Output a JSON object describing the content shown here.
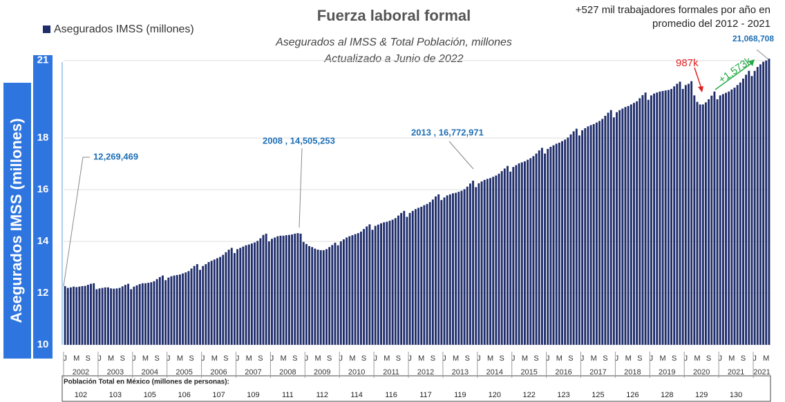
{
  "chart_data": {
    "type": "bar",
    "title": "Fuerza laboral formal",
    "subtitle": [
      "Asegurados al IMSS & Total Población, millones",
      "Actualizado a Junio de 2022"
    ],
    "note": [
      "+527 mil trabajadores formales por año en",
      "promedio del 2012 - 2021"
    ],
    "ylabel": "Asegurados IMSS (millones)",
    "series": [
      {
        "name": "Asegurados IMSS (millones)",
        "color": "#1f2d6b",
        "values": [
          12.27,
          12.2,
          12.22,
          12.25,
          12.23,
          12.25,
          12.27,
          12.28,
          12.32,
          12.36,
          12.38,
          12.15,
          12.18,
          12.2,
          12.22,
          12.22,
          12.18,
          12.17,
          12.18,
          12.2,
          12.26,
          12.32,
          12.36,
          12.15,
          12.25,
          12.3,
          12.35,
          12.38,
          12.38,
          12.4,
          12.42,
          12.46,
          12.54,
          12.62,
          12.68,
          12.5,
          12.6,
          12.65,
          12.68,
          12.7,
          12.72,
          12.76,
          12.8,
          12.85,
          12.95,
          13.05,
          13.12,
          12.9,
          13.05,
          13.12,
          13.2,
          13.25,
          13.3,
          13.35,
          13.4,
          13.48,
          13.58,
          13.68,
          13.75,
          13.55,
          13.7,
          13.75,
          13.8,
          13.85,
          13.88,
          13.92,
          13.96,
          14.02,
          14.12,
          14.25,
          14.3,
          14.0,
          14.1,
          14.15,
          14.2,
          14.22,
          14.22,
          14.24,
          14.25,
          14.27,
          14.3,
          14.32,
          14.3,
          13.98,
          13.9,
          13.82,
          13.78,
          13.72,
          13.68,
          13.66,
          13.66,
          13.7,
          13.78,
          13.86,
          13.95,
          13.85,
          14.0,
          14.08,
          14.15,
          14.2,
          14.24,
          14.28,
          14.32,
          14.38,
          14.48,
          14.58,
          14.66,
          14.45,
          14.6,
          14.65,
          14.7,
          14.74,
          14.76,
          14.8,
          14.84,
          14.9,
          15.0,
          15.1,
          15.18,
          14.95,
          15.1,
          15.18,
          15.25,
          15.3,
          15.34,
          15.4,
          15.45,
          15.52,
          15.62,
          15.74,
          15.82,
          15.6,
          15.7,
          15.78,
          15.82,
          15.86,
          15.88,
          15.92,
          15.96,
          16.02,
          16.12,
          16.24,
          16.35,
          16.1,
          16.25,
          16.32,
          16.38,
          16.42,
          16.45,
          16.5,
          16.55,
          16.62,
          16.72,
          16.82,
          16.92,
          16.7,
          16.88,
          16.95,
          17.02,
          17.06,
          17.1,
          17.16,
          17.22,
          17.3,
          17.4,
          17.52,
          17.62,
          17.4,
          17.58,
          17.66,
          17.72,
          17.78,
          17.82,
          17.88,
          17.94,
          18.02,
          18.14,
          18.26,
          18.36,
          18.1,
          18.3,
          18.38,
          18.45,
          18.5,
          18.54,
          18.6,
          18.66,
          18.74,
          18.86,
          18.98,
          19.08,
          18.8,
          19.0,
          19.08,
          19.14,
          19.2,
          19.24,
          19.3,
          19.36,
          19.42,
          19.54,
          19.66,
          19.76,
          19.48,
          19.65,
          19.72,
          19.76,
          19.8,
          19.82,
          19.84,
          19.86,
          19.9,
          20.0,
          20.1,
          20.18,
          19.9,
          20.05,
          20.1,
          20.2,
          19.65,
          19.4,
          19.3,
          19.3,
          19.38,
          19.5,
          19.64,
          19.8,
          19.5,
          19.65,
          19.7,
          19.75,
          19.8,
          19.88,
          19.95,
          20.05,
          20.15,
          20.3,
          20.45,
          20.6,
          20.4,
          20.6,
          20.75,
          20.85,
          20.95,
          21.0,
          21.07
        ]
      }
    ],
    "month_ticks": [
      "J",
      "M",
      "S"
    ],
    "years": [
      "2002",
      "2003",
      "2004",
      "2005",
      "2006",
      "2007",
      "2008",
      "2009",
      "2010",
      "2011",
      "2012",
      "2013",
      "2014",
      "2015",
      "2016",
      "2017",
      "2018",
      "2019",
      "2020",
      "2021",
      "2021"
    ],
    "population_title": "Población Total en México (millones de personas):",
    "population": [
      102,
      103,
      105,
      106,
      107,
      109,
      111,
      112,
      114,
      116,
      117,
      119,
      120,
      122,
      123,
      125,
      126,
      128,
      129,
      130
    ],
    "annotations": [
      "12,269,469",
      "2008 , 14,505,253",
      "2013 , 16,772,971",
      "21,068,708",
      "987k",
      "+1,573k"
    ],
    "ylim": [
      10,
      21.5
    ],
    "yticks": [
      10,
      12,
      14,
      16,
      18,
      21
    ],
    "grid": true,
    "legend": "top-left"
  }
}
